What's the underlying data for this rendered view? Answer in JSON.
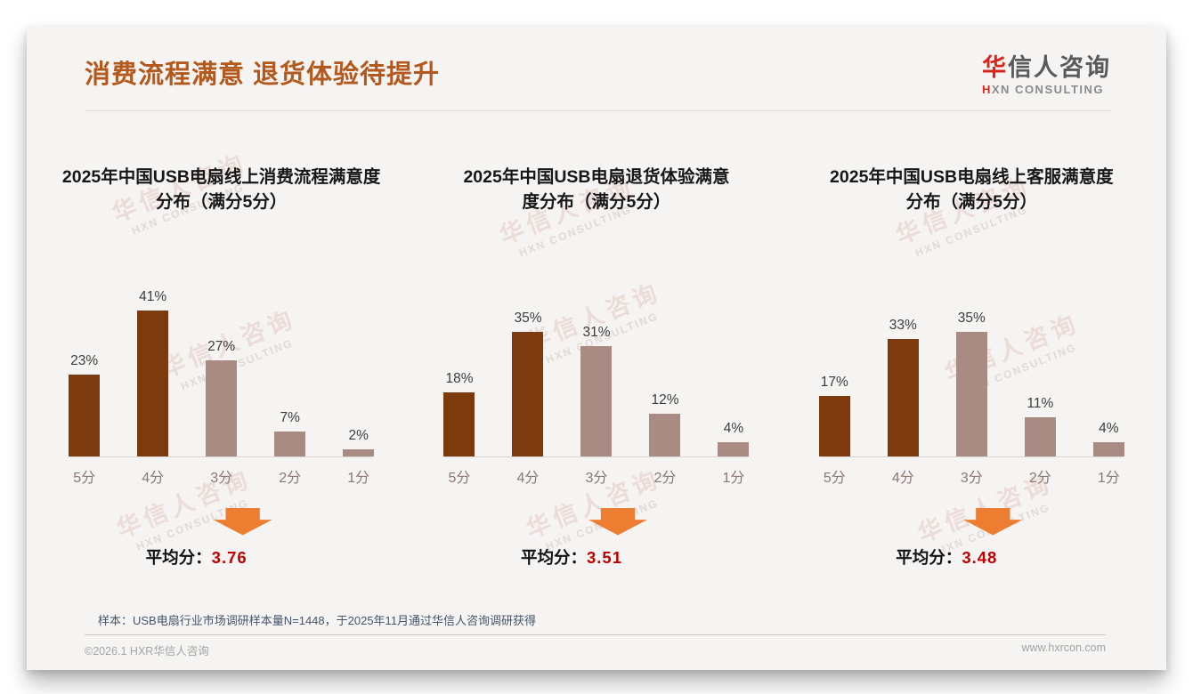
{
  "page": {
    "title": "消费流程满意 退货体验待提升"
  },
  "logo": {
    "zh_first": "华",
    "zh_rest": "信人咨询",
    "en_first": "H",
    "en_rest": "XN CONSULTING"
  },
  "watermark": {
    "zh": "华信人咨询",
    "en": "HXN CONSULTING"
  },
  "bar_colors": [
    "#7d3a0f",
    "#7d3a0f",
    "#a98b84",
    "#a98b84",
    "#a98b84"
  ],
  "colors": {
    "title_brown": "#b3591d",
    "bar_dark": "#7d3a0f",
    "bar_light": "#a98b84",
    "arrow_orange": "#ed7d31",
    "avg_red": "#c00000",
    "logo_red": "#d9261c",
    "footnote_blue": "#44546a"
  },
  "chart_data": [
    {
      "type": "bar",
      "title": "2025年中国USB电扇线上消费流程满意度\n分布（满分5分）",
      "categories": [
        "5分",
        "4分",
        "3分",
        "2分",
        "1分"
      ],
      "values": [
        23,
        41,
        27,
        7,
        2
      ],
      "value_suffix": "%",
      "ylim": [
        0,
        45
      ],
      "grid": false,
      "legend": "none",
      "avg_label": "平均分：",
      "avg_value": "3.76"
    },
    {
      "type": "bar",
      "title": "2025年中国USB电扇退货体验满意\n度分布（满分5分）",
      "categories": [
        "5分",
        "4分",
        "3分",
        "2分",
        "1分"
      ],
      "values": [
        18,
        35,
        31,
        12,
        4
      ],
      "value_suffix": "%",
      "ylim": [
        0,
        45
      ],
      "grid": false,
      "legend": "none",
      "avg_label": "平均分：",
      "avg_value": "3.51"
    },
    {
      "type": "bar",
      "title": "2025年中国USB电扇线上客服满意度\n分布（满分5分）",
      "categories": [
        "5分",
        "4分",
        "3分",
        "2分",
        "1分"
      ],
      "values": [
        17,
        33,
        35,
        11,
        4
      ],
      "value_suffix": "%",
      "ylim": [
        0,
        45
      ],
      "grid": false,
      "legend": "none",
      "avg_label": "平均分：",
      "avg_value": "3.48"
    }
  ],
  "footnote": "样本：USB电扇行业市场调研样本量N=1448，于2025年11月通过华信人咨询调研获得",
  "footer": {
    "left": "©2026.1 HXR华信人咨询",
    "right": "www.hxrcon.com"
  }
}
